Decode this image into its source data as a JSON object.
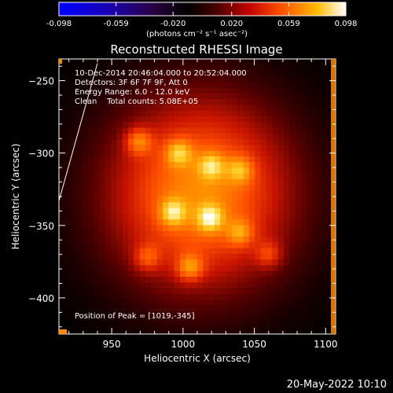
{
  "colors": {
    "background": "#000000",
    "foreground": "#ffffff",
    "colormap_stops": [
      "#0000ff",
      "#00008b",
      "#000000",
      "#8b0000",
      "#ff3300",
      "#ff9900",
      "#ffee66",
      "#ffffff"
    ],
    "edge_marker": "#ff8800"
  },
  "header": {
    "colorbar_label": "(photons cm⁻² s⁻¹ asec⁻²)",
    "plot_title": "Reconstructed RHESSI Image"
  },
  "annotations": {
    "time_range": "10-Dec-2014 20:46:04.000 to 20:52:04.000",
    "detectors": "Detectors: 3F 6F 7F 9F, Att 0",
    "energy_range": "Energy Range: 6.0 - 12.0 keV",
    "clean_counts": "Clean    Total counts: 5.08E+05",
    "peak_position": "Position of Peak = [1019,-345]"
  },
  "footer": {
    "date_stamp": "20-May-2022 10:10"
  },
  "chart_data": [
    {
      "type": "colorbar",
      "ticks": [
        -0.098,
        -0.059,
        -0.02,
        0.02,
        0.059,
        0.098
      ],
      "tick_labels": [
        "-0.098",
        "-0.059",
        "-0.020",
        "0.020",
        "0.059",
        "0.098"
      ],
      "range": [
        -0.098,
        0.098
      ],
      "label": "(photons cm⁻² s⁻¹ asec⁻²)"
    },
    {
      "type": "heatmap",
      "title": "Reconstructed RHESSI Image",
      "xlabel": "Heliocentric X (arcsec)",
      "ylabel": "Heliocentric Y (arcsec)",
      "xlim": [
        913,
        1107
      ],
      "ylim": [
        -425,
        -235
      ],
      "xticks": [
        950,
        1000,
        1050,
        1100
      ],
      "yticks": [
        -250,
        -300,
        -350,
        -400
      ],
      "peak": [
        1019,
        -345
      ],
      "sources": [
        {
          "x": 1019,
          "y": -345,
          "intensity": 1.0
        },
        {
          "x": 993,
          "y": -341,
          "intensity": 0.92
        },
        {
          "x": 1020,
          "y": -309,
          "intensity": 0.82
        },
        {
          "x": 997,
          "y": -300,
          "intensity": 0.85
        },
        {
          "x": 969,
          "y": -292,
          "intensity": 0.8
        },
        {
          "x": 1040,
          "y": -312,
          "intensity": 0.75
        },
        {
          "x": 1005,
          "y": -379,
          "intensity": 0.85
        },
        {
          "x": 1040,
          "y": -355,
          "intensity": 0.7
        },
        {
          "x": 1060,
          "y": -370,
          "intensity": 0.55
        },
        {
          "x": 975,
          "y": -372,
          "intensity": 0.6
        }
      ],
      "limb_line": [
        [
          913,
          -333
        ],
        [
          940,
          -238
        ]
      ]
    }
  ]
}
